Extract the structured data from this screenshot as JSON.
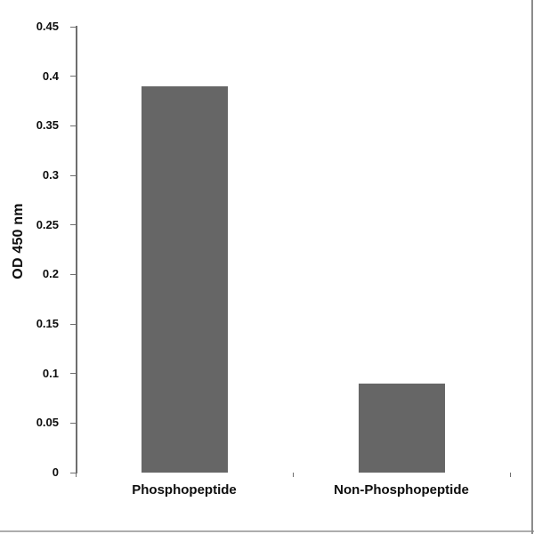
{
  "chart_data": {
    "type": "bar",
    "title": "",
    "categories": [
      "Phosphopeptide",
      "Non-Phosphopeptide"
    ],
    "values": [
      0.39,
      0.09
    ],
    "series_name": "",
    "xlabel": "",
    "ylabel": "OD 450 nm",
    "ylim": [
      0,
      0.45
    ],
    "ytick_step": 0.05,
    "ytick_labels": [
      "0",
      "0.05",
      "0.1",
      "0.15",
      "0.2",
      "0.25",
      "0.3",
      "0.35",
      "0.4",
      "0.45"
    ],
    "grid": false,
    "legend_position": "none"
  },
  "colors": {
    "bar_fill": "#666666",
    "axis_line": "#6e6e6e",
    "label_text": "#0d0d0d",
    "frame_bottom": "#adadad",
    "frame_right": "#8c8c8c",
    "background": "#ffffff"
  }
}
